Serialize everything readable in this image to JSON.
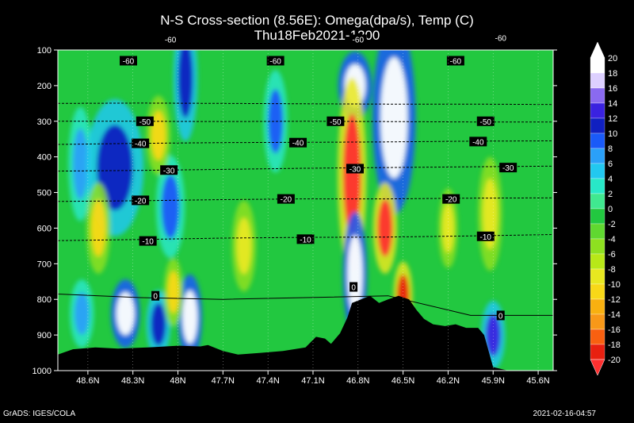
{
  "chart_data": {
    "type": "heatmap",
    "title": "N-S Cross-section (8.56E): Omega(dpa/s), Temp (C)",
    "subtitle": "Thu18Feb2021-1200",
    "y_ticks": [
      "100",
      "200",
      "300",
      "400",
      "500",
      "600",
      "700",
      "800",
      "900",
      "1000"
    ],
    "y_values": [
      100,
      200,
      300,
      400,
      500,
      600,
      700,
      800,
      900,
      1000
    ],
    "ylim": [
      100,
      1000
    ],
    "x_ticks": [
      "48.6N",
      "48.3N",
      "48N",
      "47.7N",
      "47.4N",
      "47.1N",
      "46.8N",
      "46.5N",
      "46.2N",
      "45.9N",
      "45.6N"
    ],
    "x_values": [
      48.6,
      48.3,
      48.0,
      47.7,
      47.4,
      47.1,
      46.8,
      46.5,
      46.2,
      45.9,
      45.6
    ],
    "xlim": [
      48.8,
      45.5
    ],
    "colorbar": {
      "labels": [
        "20",
        "18",
        "16",
        "14",
        "12",
        "10",
        "8",
        "6",
        "4",
        "2",
        "0",
        "-2",
        "-4",
        "-6",
        "-8",
        "-10",
        "-12",
        "-14",
        "-16",
        "-18",
        "-20"
      ],
      "colors": [
        "#ffffff",
        "#ddd0ff",
        "#8a6af0",
        "#3a22e0",
        "#1020c0",
        "#1a5af8",
        "#2aa0f8",
        "#22c8f0",
        "#28e8c8",
        "#40e890",
        "#22c840",
        "#60d830",
        "#8ee020",
        "#b8e818",
        "#e8e820",
        "#f8d818",
        "#f8b010",
        "#f89818",
        "#f86010",
        "#e82010",
        "#ff3030"
      ]
    },
    "temperature_contours": [
      {
        "label": "-60",
        "p": [
          75,
          72,
          70,
          68,
          67,
          66,
          65
        ]
      },
      {
        "label": "-60",
        "p": [
          250,
          249,
          250,
          251,
          252,
          252,
          253
        ]
      },
      {
        "label": "-50",
        "p": [
          300,
          300,
          301,
          300,
          301,
          302,
          302
        ]
      },
      {
        "label": "-40",
        "p": [
          365,
          362,
          360,
          359,
          358,
          356,
          355
        ]
      },
      {
        "label": "-30",
        "p": [
          440,
          438,
          435,
          432,
          430,
          428,
          426
        ]
      },
      {
        "label": "-20",
        "p": [
          525,
          523,
          520,
          518,
          518,
          516,
          515
        ]
      },
      {
        "label": "-10",
        "p": [
          635,
          632,
          628,
          626,
          625,
          622,
          618
        ]
      },
      {
        "label": "0",
        "p": [
          785,
          795,
          800,
          795,
          790,
          845,
          845
        ]
      }
    ],
    "contour_labels": [
      {
        "text": "-60",
        "lat": 48.05,
        "p": 70
      },
      {
        "text": "-60",
        "lat": 46.8,
        "p": 70
      },
      {
        "text": "-60",
        "lat": 45.85,
        "p": 66
      },
      {
        "text": "-60",
        "lat": 48.33,
        "p": 130
      },
      {
        "text": "-60",
        "lat": 47.35,
        "p": 130
      },
      {
        "text": "-60",
        "lat": 46.15,
        "p": 130
      },
      {
        "text": "-50",
        "lat": 48.22,
        "p": 300
      },
      {
        "text": "-50",
        "lat": 46.95,
        "p": 300
      },
      {
        "text": "-50",
        "lat": 45.95,
        "p": 300
      },
      {
        "text": "-40",
        "lat": 48.25,
        "p": 362
      },
      {
        "text": "-40",
        "lat": 47.2,
        "p": 360
      },
      {
        "text": "-40",
        "lat": 46.0,
        "p": 357
      },
      {
        "text": "-30",
        "lat": 48.06,
        "p": 437
      },
      {
        "text": "-30",
        "lat": 46.82,
        "p": 433
      },
      {
        "text": "-30",
        "lat": 45.8,
        "p": 430
      },
      {
        "text": "-20",
        "lat": 48.25,
        "p": 522
      },
      {
        "text": "-20",
        "lat": 47.28,
        "p": 518
      },
      {
        "text": "-20",
        "lat": 46.18,
        "p": 518
      },
      {
        "text": "-10",
        "lat": 48.2,
        "p": 636
      },
      {
        "text": "-10",
        "lat": 47.15,
        "p": 631
      },
      {
        "text": "-10",
        "lat": 45.95,
        "p": 623
      },
      {
        "text": "0",
        "lat": 48.15,
        "p": 790
      },
      {
        "text": "0",
        "lat": 46.83,
        "p": 765
      },
      {
        "text": "0",
        "lat": 45.85,
        "p": 845
      }
    ],
    "features": [
      {
        "lat": 48.65,
        "p": 420,
        "rx": 0.05,
        "rp": 100,
        "value": 8
      },
      {
        "lat": 48.42,
        "p": 430,
        "rx": 0.12,
        "rp": 120,
        "value": 12
      },
      {
        "lat": 48.05,
        "p": 540,
        "rx": 0.06,
        "rp": 90,
        "value": 10
      },
      {
        "lat": 47.95,
        "p": 180,
        "rx": 0.05,
        "rp": 110,
        "value": 12
      },
      {
        "lat": 47.35,
        "p": 300,
        "rx": 0.05,
        "rp": 90,
        "value": 10
      },
      {
        "lat": 46.82,
        "p": 200,
        "rx": 0.07,
        "rp": 60,
        "value": 20
      },
      {
        "lat": 46.56,
        "p": 290,
        "rx": 0.09,
        "rp": 170,
        "value": 20
      },
      {
        "lat": 46.84,
        "p": 450,
        "rx": 0.06,
        "rp": 170,
        "value": -20
      },
      {
        "lat": 46.62,
        "p": 600,
        "rx": 0.05,
        "rp": 80,
        "value": -20
      },
      {
        "lat": 46.82,
        "p": 730,
        "rx": 0.05,
        "rp": 110,
        "value": 20
      },
      {
        "lat": 48.35,
        "p": 840,
        "rx": 0.06,
        "rp": 60,
        "value": 20
      },
      {
        "lat": 47.92,
        "p": 850,
        "rx": 0.05,
        "rp": 75,
        "value": 20
      },
      {
        "lat": 48.64,
        "p": 840,
        "rx": 0.05,
        "rp": 60,
        "value": 8
      },
      {
        "lat": 48.13,
        "p": 870,
        "rx": 0.05,
        "rp": 60,
        "value": 12
      },
      {
        "lat": 45.9,
        "p": 900,
        "rx": 0.05,
        "rp": 60,
        "value": 14
      },
      {
        "lat": 48.53,
        "p": 600,
        "rx": 0.05,
        "rp": 80,
        "value": -10
      },
      {
        "lat": 48.13,
        "p": 340,
        "rx": 0.05,
        "rp": 70,
        "value": -10
      },
      {
        "lat": 48.03,
        "p": 780,
        "rx": 0.04,
        "rp": 60,
        "value": -10
      },
      {
        "lat": 47.56,
        "p": 650,
        "rx": 0.05,
        "rp": 80,
        "value": -8
      },
      {
        "lat": 46.5,
        "p": 790,
        "rx": 0.04,
        "rp": 60,
        "value": -18
      },
      {
        "lat": 46.2,
        "p": 600,
        "rx": 0.04,
        "rp": 70,
        "value": -8
      },
      {
        "lat": 45.92,
        "p": 560,
        "rx": 0.05,
        "rp": 100,
        "value": -8
      }
    ],
    "terrain_p": [
      [
        48.8,
        955
      ],
      [
        48.7,
        940
      ],
      [
        48.55,
        935
      ],
      [
        48.4,
        938
      ],
      [
        48.2,
        935
      ],
      [
        48.0,
        930
      ],
      [
        47.85,
        932
      ],
      [
        47.8,
        928
      ],
      [
        47.7,
        945
      ],
      [
        47.6,
        955
      ],
      [
        47.45,
        950
      ],
      [
        47.3,
        945
      ],
      [
        47.15,
        935
      ],
      [
        47.08,
        905
      ],
      [
        47.02,
        910
      ],
      [
        46.98,
        925
      ],
      [
        46.92,
        895
      ],
      [
        46.87,
        850
      ],
      [
        46.84,
        810
      ],
      [
        46.78,
        800
      ],
      [
        46.72,
        790
      ],
      [
        46.66,
        810
      ],
      [
        46.6,
        800
      ],
      [
        46.53,
        790
      ],
      [
        46.46,
        800
      ],
      [
        46.41,
        830
      ],
      [
        46.36,
        855
      ],
      [
        46.3,
        870
      ],
      [
        46.22,
        875
      ],
      [
        46.15,
        870
      ],
      [
        46.08,
        880
      ],
      [
        46.0,
        880
      ],
      [
        45.96,
        900
      ],
      [
        45.9,
        990
      ],
      [
        45.8,
        1000
      ],
      [
        45.7,
        1000
      ],
      [
        45.6,
        1000
      ],
      [
        45.5,
        1010
      ]
    ]
  },
  "footer": {
    "left": "GrADS: IGES/COLA",
    "right": "2021-02-16-04:57"
  }
}
